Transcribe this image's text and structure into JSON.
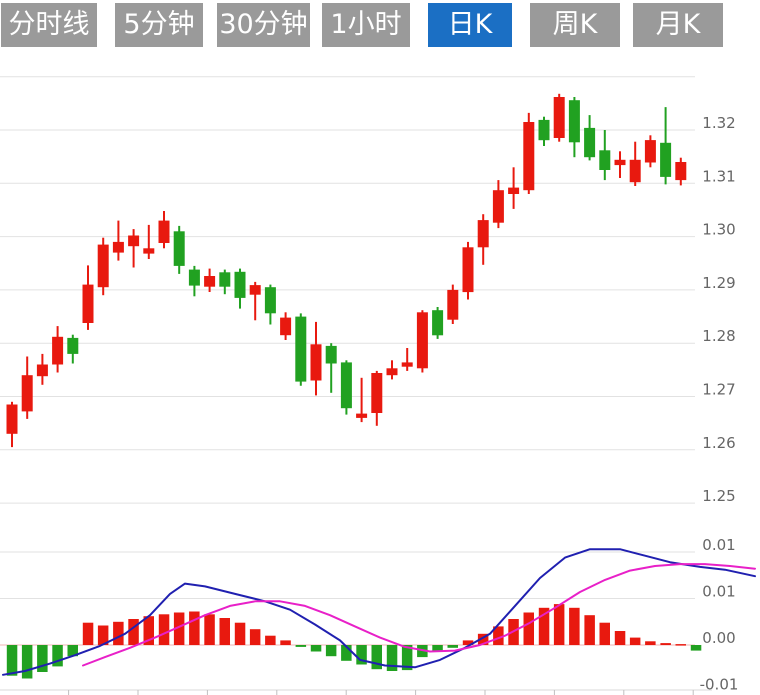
{
  "tabs": {
    "items": [
      {
        "name": "tab-time-line",
        "label": "分时线",
        "active": false
      },
      {
        "name": "tab-5min",
        "label": "5分钟",
        "active": false
      },
      {
        "name": "tab-30min",
        "label": "30分钟",
        "active": false
      },
      {
        "name": "tab-1hour",
        "label": "1小时",
        "active": false
      },
      {
        "name": "tab-daily-k",
        "label": "日K",
        "active": true
      },
      {
        "name": "tab-weekly-k",
        "label": "周K",
        "active": false
      },
      {
        "name": "tab-monthly-k",
        "label": "月K",
        "active": false
      }
    ],
    "active_bg": "#1b6fc4",
    "inactive_bg": "#9a9a9a",
    "text_color": "#ffffff"
  },
  "colors": {
    "up": "#e8190f",
    "down": "#21a121",
    "dif_line": "#2020b0",
    "dea_line": "#e820c8",
    "grid": "#e2e2e2",
    "zero_line": "#f2b6b6",
    "axis_line": "#d8d8d8",
    "tick": "#c0c0c0",
    "axis_label": "#666666",
    "background": "#ffffff"
  },
  "chart_data": {
    "type": "candlestick+macd",
    "price_panel": {
      "axis_side": "right",
      "grid_values": [
        1.33,
        1.32,
        1.31,
        1.3,
        1.29,
        1.28,
        1.27,
        1.26,
        1.25
      ],
      "y_ticks": [
        {
          "value": 1.32,
          "label": "1.32"
        },
        {
          "value": 1.31,
          "label": "1.31"
        },
        {
          "value": 1.3,
          "label": "1.30"
        },
        {
          "value": 1.29,
          "label": "1.29"
        },
        {
          "value": 1.28,
          "label": "1.28"
        },
        {
          "value": 1.27,
          "label": "1.27"
        },
        {
          "value": 1.26,
          "label": "1.26"
        },
        {
          "value": 1.25,
          "label": "1.25"
        }
      ],
      "up_means": "close>=open (red)",
      "down_means": "close<open (green)",
      "candles": [
        {
          "o": 1.263,
          "c": 1.2685,
          "h": 1.269,
          "l": 1.2605
        },
        {
          "o": 1.2672,
          "c": 1.274,
          "h": 1.2775,
          "l": 1.2658
        },
        {
          "o": 1.2738,
          "c": 1.276,
          "h": 1.278,
          "l": 1.2722
        },
        {
          "o": 1.276,
          "c": 1.2812,
          "h": 1.2832,
          "l": 1.2745
        },
        {
          "o": 1.281,
          "c": 1.278,
          "h": 1.2816,
          "l": 1.2762
        },
        {
          "o": 1.2838,
          "c": 1.291,
          "h": 1.2946,
          "l": 1.2825
        },
        {
          "o": 1.2905,
          "c": 1.2985,
          "h": 1.2998,
          "l": 1.289
        },
        {
          "o": 1.297,
          "c": 1.299,
          "h": 1.303,
          "l": 1.2955
        },
        {
          "o": 1.2982,
          "c": 1.3002,
          "h": 1.3014,
          "l": 1.2942
        },
        {
          "o": 1.2968,
          "c": 1.2978,
          "h": 1.3022,
          "l": 1.2958
        },
        {
          "o": 1.2988,
          "c": 1.303,
          "h": 1.3048,
          "l": 1.2978
        },
        {
          "o": 1.301,
          "c": 1.2945,
          "h": 1.302,
          "l": 1.293
        },
        {
          "o": 1.2938,
          "c": 1.2908,
          "h": 1.2945,
          "l": 1.2888
        },
        {
          "o": 1.2906,
          "c": 1.2926,
          "h": 1.294,
          "l": 1.2896
        },
        {
          "o": 1.2933,
          "c": 1.2906,
          "h": 1.2938,
          "l": 1.2892
        },
        {
          "o": 1.2934,
          "c": 1.2885,
          "h": 1.294,
          "l": 1.2865
        },
        {
          "o": 1.2891,
          "c": 1.2909,
          "h": 1.2915,
          "l": 1.2843
        },
        {
          "o": 1.2905,
          "c": 1.2856,
          "h": 1.291,
          "l": 1.2835
        },
        {
          "o": 1.2815,
          "c": 1.2848,
          "h": 1.2858,
          "l": 1.2806
        },
        {
          "o": 1.285,
          "c": 1.2728,
          "h": 1.2856,
          "l": 1.272
        },
        {
          "o": 1.273,
          "c": 1.2798,
          "h": 1.284,
          "l": 1.2702
        },
        {
          "o": 1.2795,
          "c": 1.2762,
          "h": 1.28,
          "l": 1.2707
        },
        {
          "o": 1.2764,
          "c": 1.2678,
          "h": 1.2768,
          "l": 1.2666
        },
        {
          "o": 1.266,
          "c": 1.2668,
          "h": 1.2735,
          "l": 1.2652
        },
        {
          "o": 1.2669,
          "c": 1.2744,
          "h": 1.2748,
          "l": 1.2645
        },
        {
          "o": 1.274,
          "c": 1.2753,
          "h": 1.2768,
          "l": 1.2732
        },
        {
          "o": 1.2756,
          "c": 1.2764,
          "h": 1.2791,
          "l": 1.2748
        },
        {
          "o": 1.2753,
          "c": 1.2858,
          "h": 1.2862,
          "l": 1.2745
        },
        {
          "o": 1.2862,
          "c": 1.2815,
          "h": 1.2868,
          "l": 1.2808
        },
        {
          "o": 1.2844,
          "c": 1.29,
          "h": 1.291,
          "l": 1.2836
        },
        {
          "o": 1.2896,
          "c": 1.298,
          "h": 1.299,
          "l": 1.2882
        },
        {
          "o": 1.298,
          "c": 1.3031,
          "h": 1.3042,
          "l": 1.2947
        },
        {
          "o": 1.3026,
          "c": 1.3087,
          "h": 1.3106,
          "l": 1.3016
        },
        {
          "o": 1.308,
          "c": 1.3092,
          "h": 1.313,
          "l": 1.3052
        },
        {
          "o": 1.3087,
          "c": 1.3215,
          "h": 1.3232,
          "l": 1.308
        },
        {
          "o": 1.3219,
          "c": 1.3181,
          "h": 1.3225,
          "l": 1.317
        },
        {
          "o": 1.3185,
          "c": 1.3262,
          "h": 1.3268,
          "l": 1.3178
        },
        {
          "o": 1.3256,
          "c": 1.3177,
          "h": 1.3262,
          "l": 1.3149
        },
        {
          "o": 1.3204,
          "c": 1.3149,
          "h": 1.3228,
          "l": 1.3143
        },
        {
          "o": 1.3162,
          "c": 1.3125,
          "h": 1.32,
          "l": 1.3106
        },
        {
          "o": 1.3134,
          "c": 1.3144,
          "h": 1.316,
          "l": 1.311
        },
        {
          "o": 1.3102,
          "c": 1.3144,
          "h": 1.3178,
          "l": 1.3095
        },
        {
          "o": 1.3139,
          "c": 1.3181,
          "h": 1.319,
          "l": 1.313
        },
        {
          "o": 1.3176,
          "c": 1.3112,
          "h": 1.3243,
          "l": 1.3098
        },
        {
          "o": 1.3106,
          "c": 1.314,
          "h": 1.3148,
          "l": 1.3096
        }
      ]
    },
    "macd_panel": {
      "axis_side": "right",
      "y_ticks": [
        {
          "value": 0.01,
          "label": "0.01"
        },
        {
          "value": 0.005,
          "label": "0.01"
        },
        {
          "value": 0.0,
          "label": "0.00"
        },
        {
          "value": -0.005,
          "label": "-0.01"
        }
      ],
      "histogram": [
        -0.0033,
        -0.0036,
        -0.0029,
        -0.0023,
        -0.0012,
        0.0024,
        0.0021,
        0.0025,
        0.0028,
        0.0031,
        0.0033,
        0.0035,
        0.0036,
        0.0033,
        0.0029,
        0.0024,
        0.0017,
        0.001,
        0.0005,
        -0.0002,
        -0.0007,
        -0.0012,
        -0.0017,
        -0.0021,
        -0.0026,
        -0.0028,
        -0.0027,
        -0.0013,
        -0.0006,
        -0.0003,
        0.0005,
        0.0012,
        0.002,
        0.0028,
        0.0035,
        0.004,
        0.0044,
        0.004,
        0.0032,
        0.0024,
        0.0015,
        0.0008,
        0.0004,
        0.0002,
        0.0001,
        -0.0006
      ],
      "dif": [
        [
          3,
          -0.0032
        ],
        [
          25,
          -0.0028
        ],
        [
          50,
          -0.002
        ],
        [
          75,
          -0.0011
        ],
        [
          100,
          -0.0001
        ],
        [
          125,
          0.0012
        ],
        [
          150,
          0.0032
        ],
        [
          170,
          0.0055
        ],
        [
          185,
          0.0066
        ],
        [
          205,
          0.0063
        ],
        [
          235,
          0.0055
        ],
        [
          265,
          0.0047
        ],
        [
          290,
          0.0038
        ],
        [
          315,
          0.0022
        ],
        [
          340,
          0.0005
        ],
        [
          360,
          -0.0016
        ],
        [
          385,
          -0.0022
        ],
        [
          415,
          -0.0024
        ],
        [
          440,
          -0.0016
        ],
        [
          465,
          -0.0003
        ],
        [
          490,
          0.0012
        ],
        [
          515,
          0.0042
        ],
        [
          540,
          0.0072
        ],
        [
          565,
          0.0094
        ],
        [
          590,
          0.0103
        ],
        [
          620,
          0.0103
        ],
        [
          645,
          0.0096
        ],
        [
          670,
          0.0089
        ],
        [
          700,
          0.0084
        ],
        [
          725,
          0.0081
        ],
        [
          755,
          0.0074
        ]
      ],
      "dea": [
        [
          83,
          -0.0022
        ],
        [
          105,
          -0.0013
        ],
        [
          130,
          -0.0003
        ],
        [
          155,
          0.0008
        ],
        [
          180,
          0.002
        ],
        [
          205,
          0.0032
        ],
        [
          230,
          0.0042
        ],
        [
          255,
          0.0047
        ],
        [
          280,
          0.0047
        ],
        [
          305,
          0.0042
        ],
        [
          330,
          0.0032
        ],
        [
          355,
          0.002
        ],
        [
          380,
          0.0008
        ],
        [
          405,
          -0.0002
        ],
        [
          430,
          -0.0007
        ],
        [
          455,
          -0.0006
        ],
        [
          480,
          0.0
        ],
        [
          505,
          0.001
        ],
        [
          530,
          0.0024
        ],
        [
          555,
          0.004
        ],
        [
          580,
          0.0057
        ],
        [
          605,
          0.007
        ],
        [
          630,
          0.008
        ],
        [
          655,
          0.0085
        ],
        [
          680,
          0.0087
        ],
        [
          705,
          0.0087
        ],
        [
          730,
          0.0085
        ],
        [
          755,
          0.0082
        ]
      ]
    }
  }
}
